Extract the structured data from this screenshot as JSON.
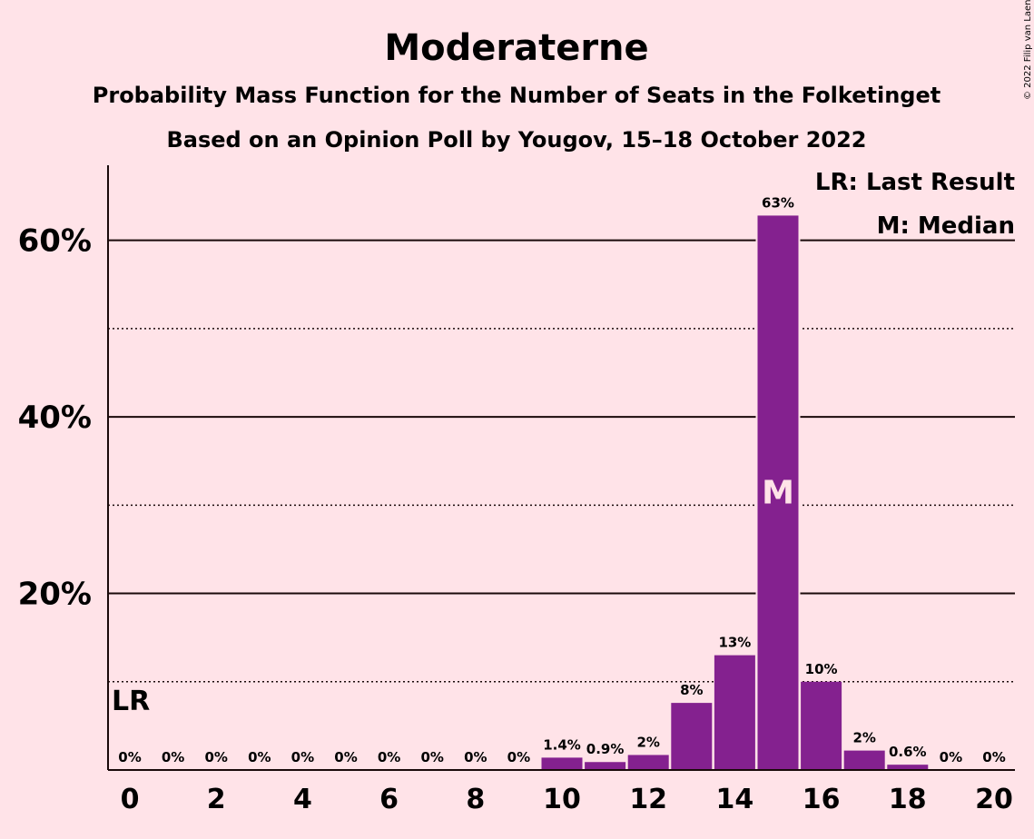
{
  "chart_data": {
    "type": "bar",
    "title": "Moderaterne",
    "subtitle": "Probability Mass Function for the Number of Seats in the Folketinget",
    "subtitle2": "Based on an Opinion Poll by Yougov, 15–18 October 2022",
    "copyright": "© 2022 Filip van Laenen",
    "x": [
      0,
      1,
      2,
      3,
      4,
      5,
      6,
      7,
      8,
      9,
      10,
      11,
      12,
      13,
      14,
      15,
      16,
      17,
      18,
      19,
      20
    ],
    "values": [
      0,
      0,
      0,
      0,
      0,
      0,
      0,
      0,
      0,
      0,
      1.4,
      0.9,
      1.7,
      7.6,
      13,
      62.8,
      10,
      2.2,
      0.6,
      0,
      0
    ],
    "labels": [
      "0%",
      "0%",
      "0%",
      "0%",
      "0%",
      "0%",
      "0%",
      "0%",
      "0%",
      "0%",
      "1.4%",
      "0.9%",
      "2%",
      "8%",
      "13%",
      "63%",
      "10%",
      "2%",
      "0.6%",
      "0%",
      "0%"
    ],
    "xticks": [
      0,
      2,
      4,
      6,
      8,
      10,
      12,
      14,
      16,
      18,
      20
    ],
    "yticks": [
      {
        "v": 20,
        "label": "20%"
      },
      {
        "v": 40,
        "label": "40%"
      },
      {
        "v": 60,
        "label": "60%"
      }
    ],
    "yminor": [
      10,
      30,
      50
    ],
    "ylim": [
      0,
      68.5
    ],
    "last_result": 0,
    "median": 15,
    "lr_mark": "LR",
    "median_mark": "M",
    "legend": [
      "LR: Last Result",
      "M: Median"
    ],
    "bar_color": "#84218f",
    "grid": true
  }
}
